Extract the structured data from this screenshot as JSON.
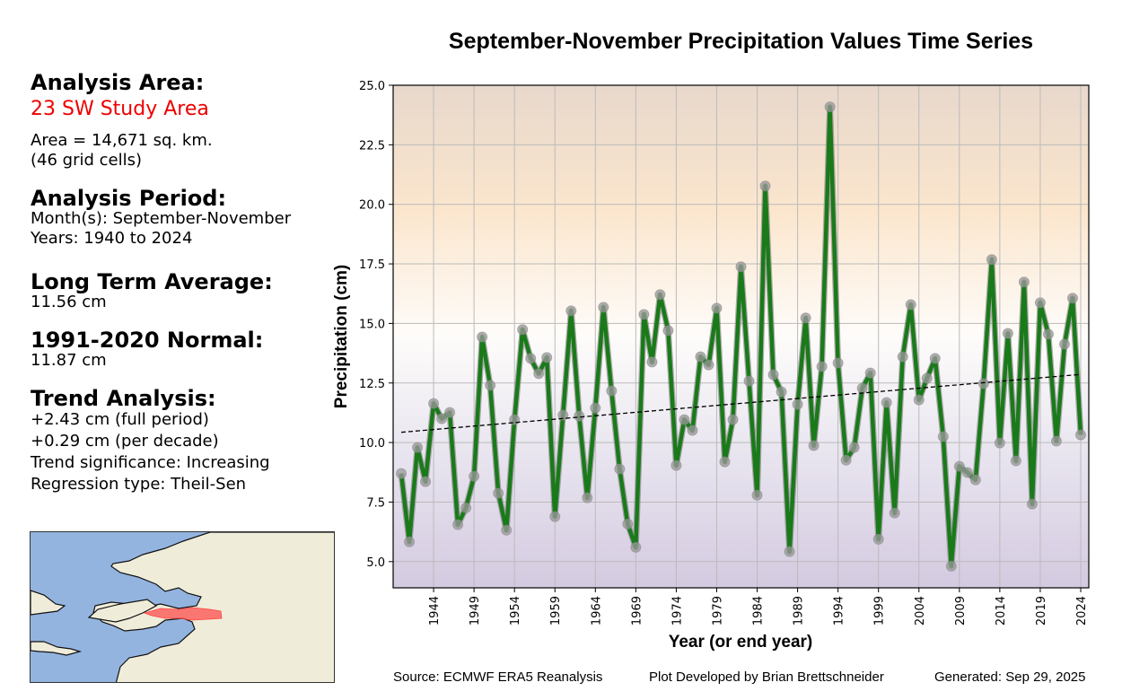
{
  "sidebar": {
    "area_heading": "Analysis Area:",
    "area_name": "23 SW Study Area",
    "area_size": "Area = 14,671 sq. km.",
    "grid_cells": "(46 grid cells)",
    "period_heading": "Analysis Period:",
    "months": "Month(s): September-November",
    "years": "Years: 1940 to 2024",
    "lta_heading": "Long Term Average:",
    "lta_value": "11.56 cm",
    "normal_heading": "1991-2020 Normal:",
    "normal_value": "11.87 cm",
    "trend_heading": "Trend Analysis:",
    "trend_full": "+2.43 cm (full period)",
    "trend_decade": "+0.29 cm (per decade)",
    "trend_significance": "Trend significance: Increasing",
    "regression_type": "Regression type: Theil-Sen"
  },
  "footer": {
    "source": "Source: ECMWF ERA5 Reanalysis",
    "developer": "Plot Developed by Brian Brettschneider",
    "generated": "Generated: Sep 29, 2025"
  },
  "colors": {
    "line": "#1a7a1a",
    "marker": "#999999",
    "trend": "#000000",
    "area_highlight": "#ff4444",
    "water": "#94b4e0",
    "land": "#efedda"
  },
  "chart_data": {
    "type": "line",
    "title": "September-November Precipitation Values Time Series",
    "xlabel": "Year (or end year)",
    "ylabel": "Precipitation (cm)",
    "ylim": [
      3.9,
      25.0
    ],
    "xlim": [
      1939,
      2025
    ],
    "yticks": [
      5.0,
      7.5,
      10.0,
      12.5,
      15.0,
      17.5,
      20.0,
      22.5,
      25.0
    ],
    "ytick_labels": [
      "5.0",
      "7.5",
      "10.0",
      "12.5",
      "15.0",
      "17.5",
      "20.0",
      "22.5",
      "25.0"
    ],
    "xticks": [
      1944,
      1949,
      1954,
      1959,
      1964,
      1969,
      1974,
      1979,
      1984,
      1989,
      1994,
      1999,
      2004,
      2009,
      2014,
      2019,
      2024
    ],
    "xtick_labels": [
      "1944",
      "1949",
      "1954",
      "1959",
      "1964",
      "1969",
      "1974",
      "1979",
      "1984",
      "1989",
      "1994",
      "1999",
      "2004",
      "2009",
      "2014",
      "2019",
      "2024"
    ],
    "grid": true,
    "x": [
      1940,
      1941,
      1942,
      1943,
      1944,
      1945,
      1946,
      1947,
      1948,
      1949,
      1950,
      1951,
      1952,
      1953,
      1954,
      1955,
      1956,
      1957,
      1958,
      1959,
      1960,
      1961,
      1962,
      1963,
      1964,
      1965,
      1966,
      1967,
      1968,
      1969,
      1970,
      1971,
      1972,
      1973,
      1974,
      1975,
      1976,
      1977,
      1978,
      1979,
      1980,
      1981,
      1982,
      1983,
      1984,
      1985,
      1986,
      1987,
      1988,
      1989,
      1990,
      1991,
      1992,
      1993,
      1994,
      1995,
      1996,
      1997,
      1998,
      1999,
      2000,
      2001,
      2002,
      2003,
      2004,
      2005,
      2006,
      2007,
      2008,
      2009,
      2010,
      2011,
      2012,
      2013,
      2014,
      2015,
      2016,
      2017,
      2018,
      2019,
      2020,
      2021,
      2022,
      2023,
      2024
    ],
    "series": [
      {
        "name": "Precipitation",
        "values": [
          8.7,
          5.83,
          9.79,
          8.36,
          11.64,
          11.0,
          11.26,
          6.55,
          7.26,
          8.58,
          14.43,
          12.4,
          7.87,
          6.32,
          10.96,
          14.74,
          13.53,
          12.89,
          13.57,
          6.89,
          11.15,
          15.53,
          11.11,
          7.68,
          11.45,
          15.68,
          12.17,
          8.89,
          6.58,
          5.6,
          15.38,
          13.38,
          16.21,
          14.7,
          9.04,
          10.96,
          10.51,
          13.6,
          13.26,
          15.64,
          9.19,
          10.96,
          17.38,
          12.58,
          7.79,
          20.77,
          12.85,
          12.13,
          5.42,
          11.6,
          15.23,
          9.87,
          13.19,
          24.09,
          13.34,
          9.26,
          9.79,
          12.28,
          12.92,
          5.94,
          11.68,
          7.04,
          13.6,
          15.79,
          11.79,
          12.7,
          13.53,
          10.25,
          4.81,
          9.0,
          8.74,
          8.43,
          12.47,
          17.68,
          9.98,
          14.58,
          9.23,
          16.74,
          7.42,
          15.87,
          14.55,
          10.06,
          14.13,
          16.06,
          10.32
        ]
      },
      {
        "name": "Theil-Sen trend",
        "x": [
          1940,
          2024
        ],
        "values": [
          10.43,
          12.86
        ]
      }
    ]
  }
}
